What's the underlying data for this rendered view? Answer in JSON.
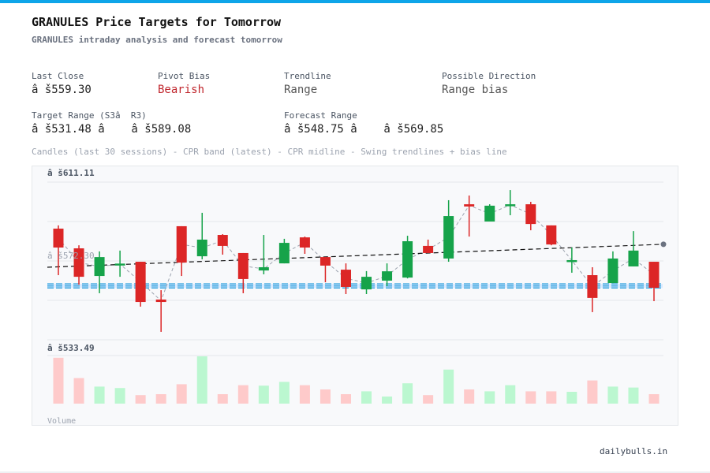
{
  "header": {
    "title": "GRANULES Price Targets for Tomorrow",
    "subtitle": "GRANULES intraday analysis and forecast tomorrow"
  },
  "stats": {
    "last_close": {
      "label": "Last Close",
      "value": "â š559.30"
    },
    "pivot_bias": {
      "label": "Pivot Bias",
      "value": "Bearish",
      "color": "#c0262d"
    },
    "trendline": {
      "label": "Trendline",
      "value": "Range"
    },
    "direction": {
      "label": "Possible Direction",
      "value": "Range bias"
    },
    "target_range": {
      "label": "Target Range (S3â  R3)",
      "value": "â š531.48 â    â š589.08"
    },
    "forecast_range": {
      "label": "Forecast Range",
      "value": "â š548.75 â    â š569.85"
    }
  },
  "legend": "Candles (last 30 sessions) - CPR band (latest) - CPR midline - Swing trendlines + bias line",
  "footer": "dailybulls.in",
  "chart_data": {
    "type": "candlestick",
    "y_labels": {
      "top": "â š611.11",
      "mid": "â š572.30",
      "bottom": "â š533.49"
    },
    "ylim": [
      533.49,
      611.11
    ],
    "volume_label": "Volume",
    "colors": {
      "up": "#16a34a",
      "down": "#dc2626",
      "vol_up": "#bbf7d0",
      "vol_down": "#fecaca",
      "cpr": "#38a6e0",
      "bias": "#111111",
      "swing": "#9ca3af"
    },
    "candles": [
      {
        "o": 588.2,
        "h": 589.8,
        "l": 565.3,
        "c": 578.9
      },
      {
        "o": 578.5,
        "h": 580.0,
        "l": 560.6,
        "c": 564.5
      },
      {
        "o": 564.9,
        "h": 577.0,
        "l": 556.4,
        "c": 574.2
      },
      {
        "o": 570.5,
        "h": 577.4,
        "l": 564.5,
        "c": 571.0
      },
      {
        "o": 571.9,
        "h": 571.9,
        "l": 549.8,
        "c": 552.1
      },
      {
        "o": 553.3,
        "h": 557.9,
        "l": 537.4,
        "c": 552.1
      },
      {
        "o": 589.4,
        "h": 589.4,
        "l": 564.9,
        "c": 571.5
      },
      {
        "o": 574.6,
        "h": 596.0,
        "l": 573.1,
        "c": 582.8
      },
      {
        "o": 585.1,
        "h": 585.5,
        "l": 575.4,
        "c": 579.7
      },
      {
        "o": 576.2,
        "h": 576.2,
        "l": 556.4,
        "c": 563.4
      },
      {
        "o": 567.6,
        "h": 585.1,
        "l": 565.7,
        "c": 569.2
      },
      {
        "o": 571.1,
        "h": 583.2,
        "l": 571.1,
        "c": 581.2
      },
      {
        "o": 583.9,
        "h": 584.3,
        "l": 575.8,
        "c": 578.9
      },
      {
        "o": 574.2,
        "h": 574.2,
        "l": 561.8,
        "c": 570.0
      },
      {
        "o": 568.0,
        "h": 571.1,
        "l": 556.0,
        "c": 559.5
      },
      {
        "o": 558.3,
        "h": 567.3,
        "l": 556.0,
        "c": 564.5
      },
      {
        "o": 562.6,
        "h": 571.1,
        "l": 559.9,
        "c": 567.2
      },
      {
        "o": 564.1,
        "h": 584.7,
        "l": 563.7,
        "c": 582.0
      },
      {
        "o": 579.7,
        "h": 582.8,
        "l": 576.2,
        "c": 576.2
      },
      {
        "o": 573.5,
        "h": 602.2,
        "l": 571.9,
        "c": 594.4
      },
      {
        "o": 600.2,
        "h": 604.5,
        "l": 584.3,
        "c": 599.1
      },
      {
        "o": 591.7,
        "h": 600.2,
        "l": 591.7,
        "c": 599.5
      },
      {
        "o": 599.5,
        "h": 607.2,
        "l": 594.8,
        "c": 600.2
      },
      {
        "o": 600.2,
        "h": 601.4,
        "l": 587.4,
        "c": 590.5
      },
      {
        "o": 589.8,
        "h": 589.8,
        "l": 580.0,
        "c": 580.4
      },
      {
        "o": 572.3,
        "h": 578.9,
        "l": 566.5,
        "c": 572.7
      },
      {
        "o": 565.3,
        "h": 569.2,
        "l": 547.1,
        "c": 554.1
      },
      {
        "o": 561.4,
        "h": 577.0,
        "l": 561.4,
        "c": 573.5
      },
      {
        "o": 569.6,
        "h": 587.0,
        "l": 569.6,
        "c": 577.4
      },
      {
        "o": 571.9,
        "h": 571.9,
        "l": 552.5,
        "c": 559.1
      }
    ],
    "volume_relative": [
      0.97,
      0.54,
      0.36,
      0.33,
      0.18,
      0.2,
      0.41,
      1.0,
      0.2,
      0.39,
      0.38,
      0.46,
      0.39,
      0.3,
      0.2,
      0.26,
      0.15,
      0.43,
      0.18,
      0.72,
      0.3,
      0.26,
      0.39,
      0.26,
      0.26,
      0.25,
      0.49,
      0.36,
      0.34,
      0.2
    ],
    "cpr_band": [
      559.0,
      561.0
    ],
    "bias_line": [
      569.2,
      580.5
    ]
  }
}
